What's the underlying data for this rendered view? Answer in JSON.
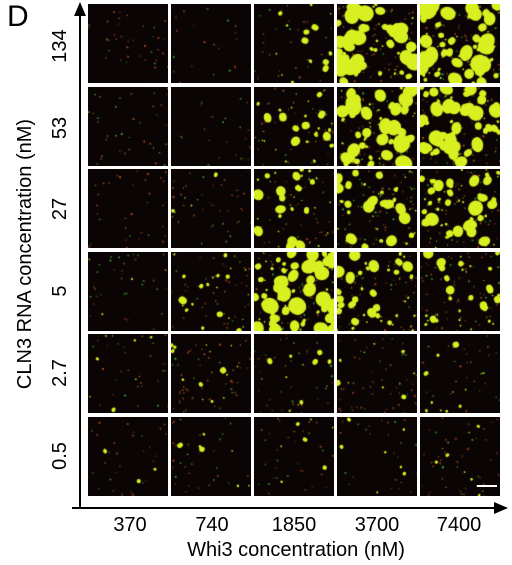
{
  "panel_label": "D",
  "y_axis": {
    "title": "CLN3 RNA concentration (nM)",
    "ticks": [
      "134",
      "53",
      "27",
      "5",
      "2.7",
      "0.5"
    ]
  },
  "x_axis": {
    "title": "Whi3 concentration (nM)",
    "ticks": [
      "370",
      "740",
      "1850",
      "3700",
      "7400"
    ]
  },
  "colors": {
    "droplet": "#d8f020",
    "puncta_red": "#c85a28",
    "puncta_green": "#50d040",
    "cell_background": "#0a0504",
    "grid_line": "#ffffff"
  },
  "droplet_density": [
    [
      0.0,
      0.0,
      0.2,
      0.9,
      1.0
    ],
    [
      0.0,
      0.0,
      0.4,
      1.0,
      0.9
    ],
    [
      0.0,
      0.05,
      0.5,
      0.6,
      0.8
    ],
    [
      0.05,
      0.3,
      1.0,
      0.6,
      0.5
    ],
    [
      0.1,
      0.2,
      0.15,
      0.15,
      0.15
    ],
    [
      0.05,
      0.1,
      0.1,
      0.1,
      0.1
    ]
  ]
}
